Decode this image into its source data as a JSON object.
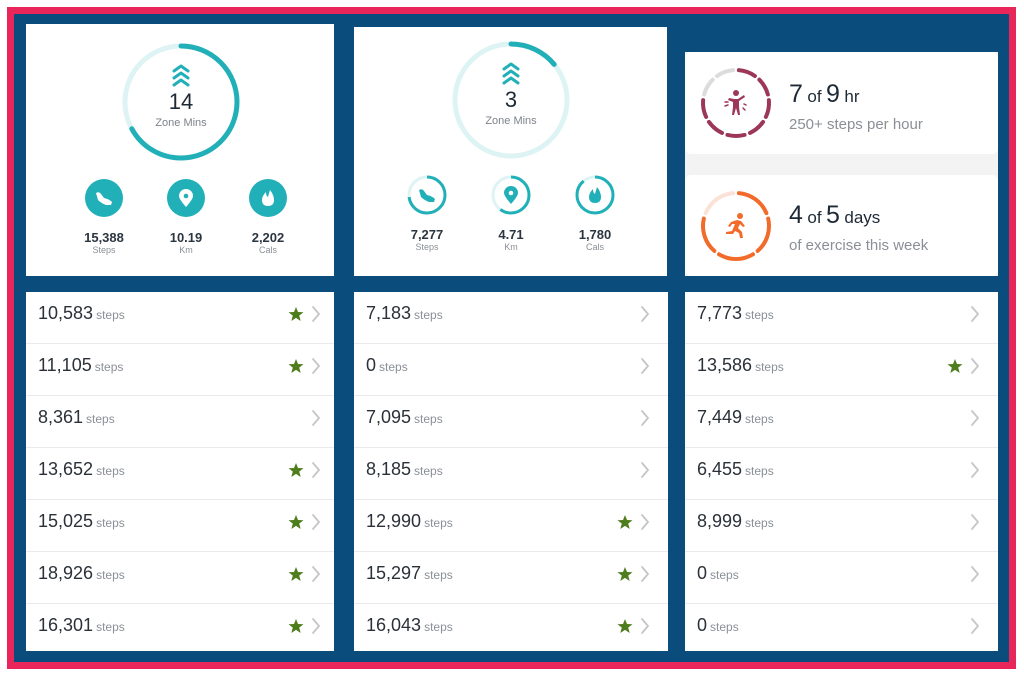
{
  "colors": {
    "outer_border": "#e8265a",
    "background": "#0a4d7c",
    "teal": "#22b0b8",
    "teal_light": "#def3f4",
    "star_green": "#4e7d1e",
    "chevron_grey": "#c4c6c9",
    "active_hours": "#9c3757",
    "exercise": "#f26b2a"
  },
  "days": [
    {
      "summary": {
        "zone_minutes": {
          "value": "14",
          "label": "Zone Mins",
          "progress": 0.67,
          "icon": "zone-chevrons-icon"
        },
        "stats": [
          {
            "value": "15,388",
            "label": "Steps",
            "icon": "shoe-icon",
            "style": "filled"
          },
          {
            "value": "10.19",
            "label": "Km",
            "icon": "location-pin-icon",
            "style": "filled"
          },
          {
            "value": "2,202",
            "label": "Cals",
            "icon": "flame-icon",
            "style": "filled"
          }
        ]
      },
      "rows": [
        {
          "steps": "10,583",
          "unit": "steps",
          "star": true
        },
        {
          "steps": "11,105",
          "unit": "steps",
          "star": true
        },
        {
          "steps": "8,361",
          "unit": "steps",
          "star": false
        },
        {
          "steps": "13,652",
          "unit": "steps",
          "star": true
        },
        {
          "steps": "15,025",
          "unit": "steps",
          "star": true
        },
        {
          "steps": "18,926",
          "unit": "steps",
          "star": true
        },
        {
          "steps": "16,301",
          "unit": "steps",
          "star": true
        }
      ]
    },
    {
      "summary": {
        "zone_minutes": {
          "value": "3",
          "label": "Zone Mins",
          "progress": 0.14,
          "icon": "zone-chevrons-icon"
        },
        "stats": [
          {
            "value": "7,277",
            "label": "Steps",
            "icon": "shoe-icon",
            "style": "ring",
            "progress": 0.73
          },
          {
            "value": "4.71",
            "label": "Km",
            "icon": "location-pin-icon",
            "style": "ring",
            "progress": 0.6
          },
          {
            "value": "1,780",
            "label": "Cals",
            "icon": "flame-icon",
            "style": "ring",
            "progress": 0.89
          }
        ]
      },
      "rows": [
        {
          "steps": "7,183",
          "unit": "steps",
          "star": false
        },
        {
          "steps": "0",
          "unit": "steps",
          "star": false
        },
        {
          "steps": "7,095",
          "unit": "steps",
          "star": false
        },
        {
          "steps": "8,185",
          "unit": "steps",
          "star": false
        },
        {
          "steps": "12,990",
          "unit": "steps",
          "star": true
        },
        {
          "steps": "15,297",
          "unit": "steps",
          "star": true
        },
        {
          "steps": "16,043",
          "unit": "steps",
          "star": true
        }
      ]
    },
    {
      "goals": [
        {
          "done": "7",
          "of": "of",
          "total": "9",
          "unit": "hr",
          "subtitle": "250+ steps per hour",
          "icon": "active-person-icon",
          "segments_total": 9,
          "segments_done": 7
        },
        {
          "done": "4",
          "of": "of",
          "total": "5",
          "unit": "days",
          "subtitle": "of exercise this week",
          "icon": "running-person-icon",
          "segments_total": 5,
          "segments_done": 4
        }
      ],
      "rows": [
        {
          "steps": "7,773",
          "unit": "steps",
          "star": false
        },
        {
          "steps": "13,586",
          "unit": "steps",
          "star": true
        },
        {
          "steps": "7,449",
          "unit": "steps",
          "star": false
        },
        {
          "steps": "6,455",
          "unit": "steps",
          "star": false
        },
        {
          "steps": "8,999",
          "unit": "steps",
          "star": false
        },
        {
          "steps": "0",
          "unit": "steps",
          "star": false
        },
        {
          "steps": "0",
          "unit": "steps",
          "star": false
        }
      ]
    }
  ]
}
